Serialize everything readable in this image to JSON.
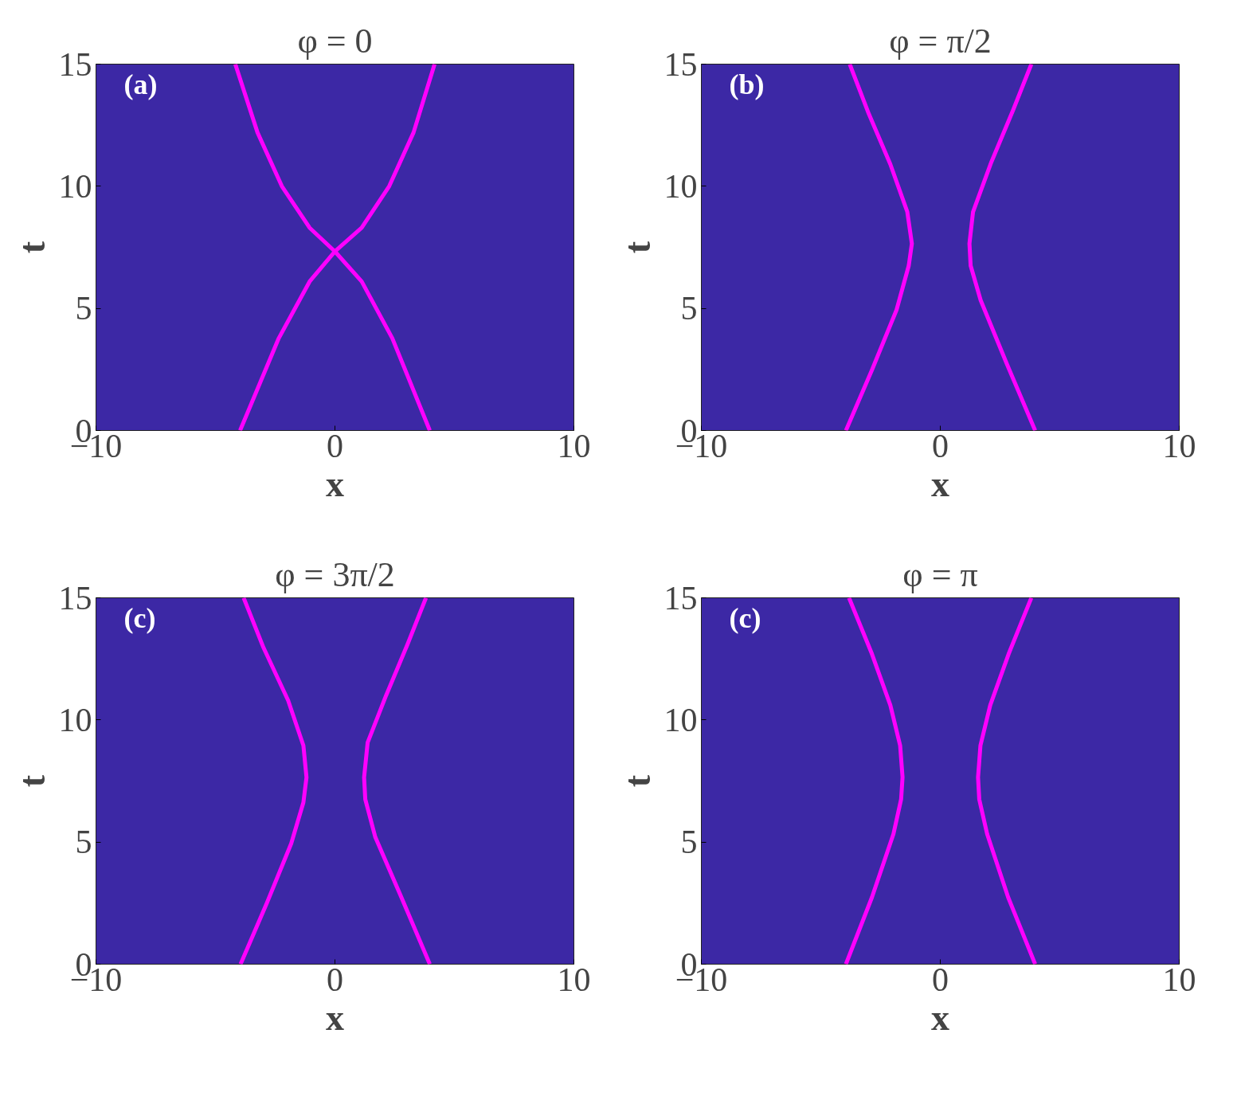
{
  "chart_data": [
    {
      "type": "line",
      "title": "φ = 0",
      "xlabel": "x",
      "ylabel": "t",
      "xlim": [
        -10,
        10
      ],
      "xticks": [
        -10,
        0,
        10
      ],
      "ylim": [
        0,
        15
      ],
      "yticks": [
        0,
        5,
        10,
        15
      ],
      "annotations": [
        "(a)"
      ],
      "series": [
        {
          "color": "#ff00ff",
          "x": [
            -3.97,
            -2.35,
            -1.06,
            0,
            1.12,
            2.27,
            3.29,
            4.17
          ],
          "values": [
            0,
            3.78,
            6.1,
            7.33,
            8.3,
            10,
            12.2,
            15
          ]
        },
        {
          "color": "#ff00ff",
          "x": [
            3.97,
            2.4,
            1.12,
            0,
            -1.06,
            -2.22,
            -3.24,
            -4.17
          ],
          "values": [
            0,
            3.78,
            6.1,
            7.33,
            8.3,
            10,
            12.2,
            15
          ]
        }
      ]
    },
    {
      "type": "line",
      "title": "φ = π/2",
      "xlabel": "x",
      "ylabel": "t",
      "xlim": [
        -10,
        10
      ],
      "xticks": [
        -10,
        0,
        10
      ],
      "ylim": [
        0,
        15
      ],
      "yticks": [
        0,
        5,
        10,
        15
      ],
      "annotations": [
        "(b)"
      ],
      "series": [
        {
          "color": "#ff00ff",
          "x": [
            -3.95,
            -2.86,
            -1.83,
            -1.32,
            -1.19,
            -1.38,
            -2.09,
            -2.99,
            -3.79
          ],
          "values": [
            0,
            2.48,
            4.94,
            6.75,
            7.65,
            8.95,
            10.9,
            12.96,
            15
          ]
        },
        {
          "color": "#ff00ff",
          "x": [
            3.97,
            2.78,
            1.69,
            1.27,
            1.22,
            1.37,
            2.14,
            3.04,
            3.81
          ],
          "values": [
            0,
            2.74,
            5.33,
            6.75,
            7.65,
            8.95,
            11,
            13.1,
            15
          ]
        }
      ]
    },
    {
      "type": "line",
      "title": "φ = 3π/2",
      "xlabel": "x",
      "ylabel": "t",
      "xlim": [
        -10,
        10
      ],
      "xticks": [
        -10,
        0,
        10
      ],
      "ylim": [
        0,
        15
      ],
      "yticks": [
        0,
        5,
        10,
        15
      ],
      "annotations": [
        "(c)"
      ],
      "series": [
        {
          "color": "#ff00ff",
          "x": [
            -3.95,
            -2.86,
            -1.83,
            -1.32,
            -1.19,
            -1.32,
            -1.96,
            -2.99,
            -3.82
          ],
          "values": [
            0,
            2.48,
            4.94,
            6.62,
            7.65,
            8.95,
            10.8,
            12.96,
            15
          ]
        },
        {
          "color": "#ff00ff",
          "x": [
            3.97,
            2.78,
            1.69,
            1.27,
            1.22,
            1.37,
            2.14,
            3.04,
            3.81
          ],
          "values": [
            0,
            2.74,
            5.2,
            6.75,
            7.65,
            9.08,
            11,
            13.1,
            15
          ]
        }
      ]
    },
    {
      "type": "line",
      "title": "φ = π",
      "xlabel": "x",
      "ylabel": "t",
      "xlim": [
        -10,
        10
      ],
      "xticks": [
        -10,
        0,
        10
      ],
      "ylim": [
        0,
        15
      ],
      "yticks": [
        0,
        5,
        10,
        15
      ],
      "annotations": [
        "(c)"
      ],
      "series": [
        {
          "color": "#ff00ff",
          "x": [
            -3.95,
            -2.86,
            -1.96,
            -1.64,
            -1.58,
            -1.68,
            -2.09,
            -2.86,
            -3.82
          ],
          "values": [
            0,
            2.74,
            5.33,
            6.75,
            7.65,
            8.95,
            10.6,
            12.7,
            15
          ]
        },
        {
          "color": "#ff00ff",
          "x": [
            3.97,
            2.84,
            1.96,
            1.63,
            1.58,
            1.68,
            2.09,
            2.86,
            3.81
          ],
          "values": [
            0,
            2.74,
            5.33,
            6.75,
            7.65,
            8.95,
            10.6,
            12.7,
            15
          ]
        }
      ]
    }
  ]
}
